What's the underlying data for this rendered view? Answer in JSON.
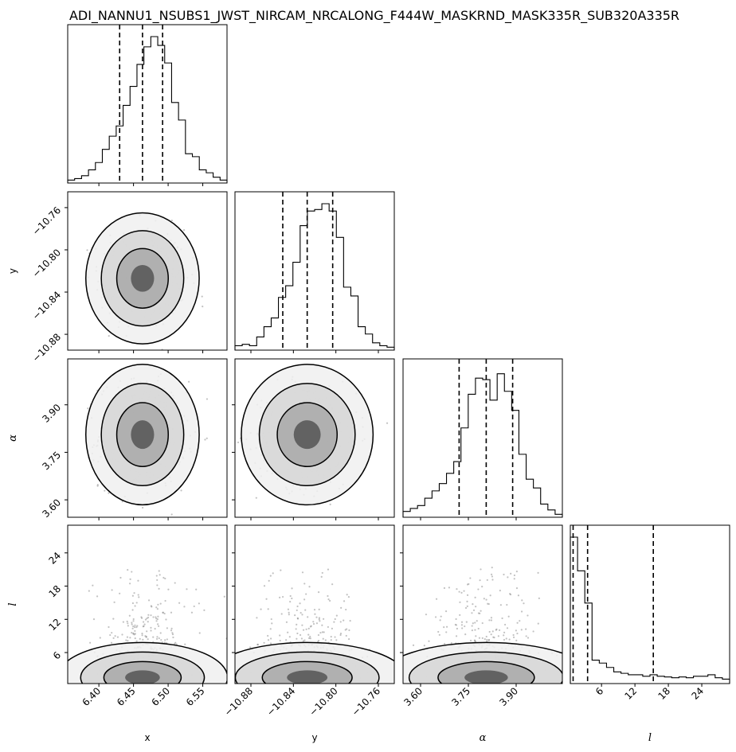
{
  "chart_data": {
    "type": "corner",
    "title": "ADI_NANNU1_NSUBS1_JWST_NIRCAM_NRCALONG_F444W_MASKRND_MASK335R_SUB320A335R",
    "parameters": [
      {
        "label": "x",
        "range": [
          6.355,
          6.585
        ],
        "ticks": [
          6.4,
          6.45,
          6.5,
          6.55
        ],
        "tick_labels": [
          "6.40",
          "6.45",
          "6.50",
          "6.55"
        ],
        "quantiles": [
          6.43,
          6.463,
          6.492
        ],
        "histogram": [
          0.02,
          0.03,
          0.05,
          0.09,
          0.14,
          0.23,
          0.32,
          0.39,
          0.53,
          0.66,
          0.81,
          0.93,
          1.0,
          0.94,
          0.82,
          0.55,
          0.43,
          0.2,
          0.18,
          0.09,
          0.07,
          0.04,
          0.02
        ]
      },
      {
        "label": "y",
        "range": [
          -10.895,
          -10.745
        ],
        "ticks": [
          -10.88,
          -10.84,
          -10.8,
          -10.76
        ],
        "tick_labels": [
          "−10.88",
          "−10.84",
          "−10.80",
          "−10.76"
        ],
        "quantiles": [
          -10.85,
          -10.827,
          -10.803
        ],
        "histogram": [
          0.03,
          0.04,
          0.03,
          0.09,
          0.16,
          0.22,
          0.36,
          0.44,
          0.6,
          0.85,
          0.95,
          0.96,
          1.0,
          0.95,
          0.77,
          0.43,
          0.37,
          0.16,
          0.11,
          0.05,
          0.03,
          0.02
        ]
      },
      {
        "label": "α",
        "range": [
          3.545,
          4.045
        ],
        "ticks": [
          3.6,
          3.75,
          3.9
        ],
        "tick_labels": [
          "3.60",
          "3.75",
          "3.90"
        ],
        "quantiles": [
          3.721,
          3.806,
          3.889
        ],
        "histogram": [
          0.04,
          0.06,
          0.08,
          0.13,
          0.18,
          0.23,
          0.3,
          0.38,
          0.61,
          0.84,
          0.95,
          0.94,
          0.8,
          0.98,
          0.86,
          0.73,
          0.43,
          0.26,
          0.2,
          0.09,
          0.05,
          0.02
        ]
      },
      {
        "label": "l",
        "range": [
          0.4,
          29.0
        ],
        "ticks": [
          6,
          12,
          18,
          24
        ],
        "tick_labels": [
          "6",
          "12",
          "18",
          "24"
        ],
        "quantiles": [
          0.9,
          3.5,
          15.3
        ],
        "histogram": [
          1.0,
          0.77,
          0.55,
          0.16,
          0.14,
          0.11,
          0.08,
          0.07,
          0.06,
          0.06,
          0.05,
          0.06,
          0.05,
          0.045,
          0.04,
          0.045,
          0.04,
          0.05,
          0.05,
          0.06,
          0.04,
          0.03
        ]
      }
    ],
    "grid": false
  }
}
